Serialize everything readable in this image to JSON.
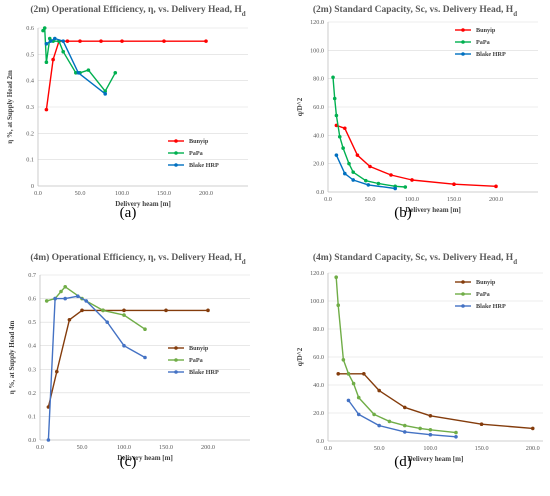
{
  "chart_data": [
    {
      "type": "line",
      "caption": "(a)",
      "title": "(2m) Operational Efficiency, η, vs. Delivery Head, H",
      "title_sub": "d",
      "xlabel": "Delivery heam [m]",
      "ylabel": "η %, at Supply Head 2m",
      "xlim": [
        0,
        250
      ],
      "ylim": [
        0,
        0.6
      ],
      "xticks": [
        0,
        50,
        100,
        150,
        200
      ],
      "xtick_labels": [
        "0.0",
        "50.0",
        "100.0",
        "150.0",
        "200.0"
      ],
      "yticks": [
        0,
        0.1,
        0.2,
        0.3,
        0.4,
        0.5,
        0.6
      ],
      "ytick_labels": [
        "0",
        "0.1",
        "0.2",
        "0.3",
        "0.4",
        "0.5",
        "0.6"
      ],
      "grid": true,
      "legend_position": "center-right",
      "series": [
        {
          "name": "Bunyip",
          "color": "#ff0000",
          "x": [
            10,
            18,
            25,
            35,
            50,
            75,
            100,
            150,
            200
          ],
          "y": [
            0.29,
            0.48,
            0.55,
            0.55,
            0.55,
            0.55,
            0.55,
            0.55,
            0.55
          ]
        },
        {
          "name": "PaPa",
          "color": "#00b050",
          "x": [
            6,
            8,
            10,
            14,
            18,
            25,
            30,
            45,
            50,
            60,
            80,
            92
          ],
          "y": [
            0.59,
            0.6,
            0.47,
            0.56,
            0.55,
            0.55,
            0.51,
            0.43,
            0.43,
            0.44,
            0.36,
            0.43
          ]
        },
        {
          "name": "Blake HRP",
          "color": "#0070c0",
          "x": [
            10,
            15,
            20,
            30,
            48,
            80
          ],
          "y": [
            0.54,
            0.55,
            0.56,
            0.55,
            0.43,
            0.35
          ]
        }
      ]
    },
    {
      "type": "line",
      "caption": "(b)",
      "title": "(2m) Standard Capacity, Sc, vs. Delivery Head, H",
      "title_sub": "d",
      "xlabel": "Delivery heam [m]",
      "ylabel": "q/D^2",
      "xlim": [
        0,
        250
      ],
      "ylim": [
        0,
        120
      ],
      "xticks": [
        0,
        50,
        100,
        150,
        200
      ],
      "xtick_labels": [
        "0.0",
        "50.0",
        "100.0",
        "150.0",
        "200.0"
      ],
      "yticks": [
        0,
        20,
        40,
        60,
        80,
        100,
        120
      ],
      "ytick_labels": [
        "0.0",
        "20.0",
        "40.0",
        "60.0",
        "80.0",
        "100.0",
        "120.0"
      ],
      "grid": true,
      "legend_position": "top-right",
      "series": [
        {
          "name": "Bunyip",
          "color": "#ff0000",
          "x": [
            10,
            20,
            35,
            50,
            75,
            100,
            150,
            200
          ],
          "y": [
            47,
            45,
            26,
            18,
            12,
            8.5,
            5.5,
            4
          ]
        },
        {
          "name": "PaPa",
          "color": "#00b050",
          "x": [
            6,
            8,
            10,
            14,
            18,
            25,
            30,
            45,
            60,
            80,
            92
          ],
          "y": [
            81,
            66,
            54,
            39,
            31,
            20,
            14,
            8,
            6,
            4,
            3.5
          ]
        },
        {
          "name": "Blake HRP",
          "color": "#0070c0",
          "x": [
            10,
            20,
            30,
            48,
            80
          ],
          "y": [
            26,
            13,
            8.5,
            5,
            2.5
          ]
        }
      ]
    },
    {
      "type": "line",
      "caption": "(c)",
      "title": "(4m) Operational Efficiency, η, vs. Delivery Head, H",
      "title_sub": "d",
      "xlabel": "Delivery heam [m]",
      "ylabel": "η %, at Supply Head 4m",
      "xlim": [
        0,
        250
      ],
      "ylim": [
        0,
        0.7
      ],
      "xticks": [
        0,
        50,
        100,
        150,
        200
      ],
      "xtick_labels": [
        "0.0",
        "50.0",
        "100.0",
        "150.0",
        "200.0"
      ],
      "yticks": [
        0,
        0.1,
        0.2,
        0.3,
        0.4,
        0.5,
        0.6,
        0.7
      ],
      "ytick_labels": [
        "0.0",
        "0.1",
        "0.2",
        "0.3",
        "0.4",
        "0.5",
        "0.6",
        "0.7"
      ],
      "grid": true,
      "legend_position": "center-right",
      "series": [
        {
          "name": "Bunyip",
          "color": "#843c0c",
          "x": [
            10,
            20,
            35,
            50,
            75,
            100,
            150,
            200
          ],
          "y": [
            0.14,
            0.29,
            0.51,
            0.55,
            0.55,
            0.55,
            0.55,
            0.55
          ]
        },
        {
          "name": "PaPa",
          "color": "#70ad47",
          "x": [
            8,
            18,
            25,
            30,
            50,
            75,
            100,
            125
          ],
          "y": [
            0.59,
            0.6,
            0.63,
            0.65,
            0.6,
            0.55,
            0.53,
            0.47
          ]
        },
        {
          "name": "Blake HRP",
          "color": "#4472c4",
          "x": [
            10,
            18,
            30,
            45,
            55,
            80,
            100,
            125
          ],
          "y": [
            0,
            0.6,
            0.6,
            0.61,
            0.59,
            0.5,
            0.4,
            0.35
          ]
        }
      ]
    },
    {
      "type": "line",
      "caption": "(d)",
      "title": "(4m) Standard Capacity, Sc, vs. Delivery Head, H",
      "title_sub": "d",
      "xlabel": "Delivery heam [m]",
      "ylabel": "q/D^2",
      "xlim": [
        0,
        210
      ],
      "ylim": [
        0,
        120
      ],
      "xticks": [
        0,
        50,
        100,
        150,
        200
      ],
      "xtick_labels": [
        "0.0",
        "50.0",
        "100.0",
        "150.0",
        "200.0"
      ],
      "yticks": [
        0,
        20,
        40,
        60,
        80,
        100,
        120
      ],
      "ytick_labels": [
        "0.0",
        "20.0",
        "40.0",
        "60.0",
        "80.0",
        "100.0",
        "120.0"
      ],
      "grid": true,
      "legend_position": "top-right",
      "series": [
        {
          "name": "Bunyip",
          "color": "#843c0c",
          "x": [
            10,
            20,
            35,
            50,
            75,
            100,
            150,
            200
          ],
          "y": [
            48,
            48,
            48,
            36,
            24,
            18,
            12,
            9
          ]
        },
        {
          "name": "PaPa",
          "color": "#70ad47",
          "x": [
            8,
            10,
            15,
            20,
            25,
            30,
            45,
            60,
            75,
            90,
            100,
            125
          ],
          "y": [
            117,
            97,
            58,
            48,
            41,
            31,
            19,
            14,
            11,
            9,
            8,
            6
          ]
        },
        {
          "name": "Blake HRP",
          "color": "#4472c4",
          "x": [
            20,
            30,
            50,
            75,
            100,
            125
          ],
          "y": [
            29,
            19,
            11,
            6.5,
            4.5,
            3
          ]
        }
      ]
    }
  ]
}
